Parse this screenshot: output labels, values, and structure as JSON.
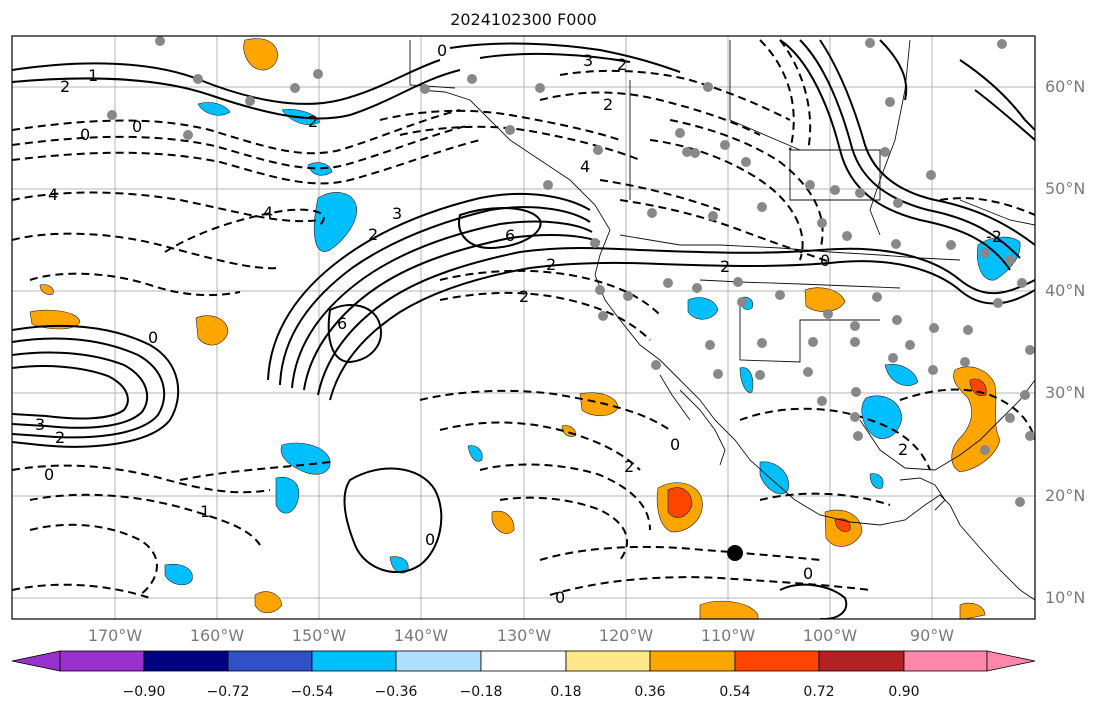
{
  "title": "2024102300 F000",
  "lat_labels": [
    "60°N",
    "50°N",
    "40°N",
    "30°N",
    "20°N",
    "10°N"
  ],
  "lon_labels": [
    "170°W",
    "160°W",
    "150°W",
    "140°W",
    "130°W",
    "120°W",
    "110°W",
    "100°W",
    "90°W"
  ],
  "contour_labels": [
    "0",
    "3",
    "2",
    "2",
    "1",
    "2",
    "0",
    "2",
    "4",
    "6",
    "4",
    "3",
    "2",
    "6",
    "0",
    "4",
    "3",
    "2",
    "2",
    "0",
    "0",
    "2",
    "1",
    "0",
    "2",
    "0",
    "0",
    "-2",
    "0",
    "2",
    "2",
    "0"
  ],
  "colorbar": {
    "ticks": [
      "−0.90",
      "−0.72",
      "−0.54",
      "−0.36",
      "−0.18",
      "0.18",
      "0.36",
      "0.54",
      "0.72",
      "0.90"
    ],
    "colors": [
      "#9932cc",
      "#000080",
      "#3050c8",
      "#00bfff",
      "#b0e0ff",
      "#ffffff",
      "#ffe88a",
      "#ffa500",
      "#ff4500",
      "#b22222",
      "#ff88aa"
    ]
  },
  "colors": {
    "positive_fill": "#ffa500",
    "positive_core": "#ff4500",
    "negative_fill": "#00bfff",
    "station": "#888888",
    "grid": "#b4b4b4"
  }
}
